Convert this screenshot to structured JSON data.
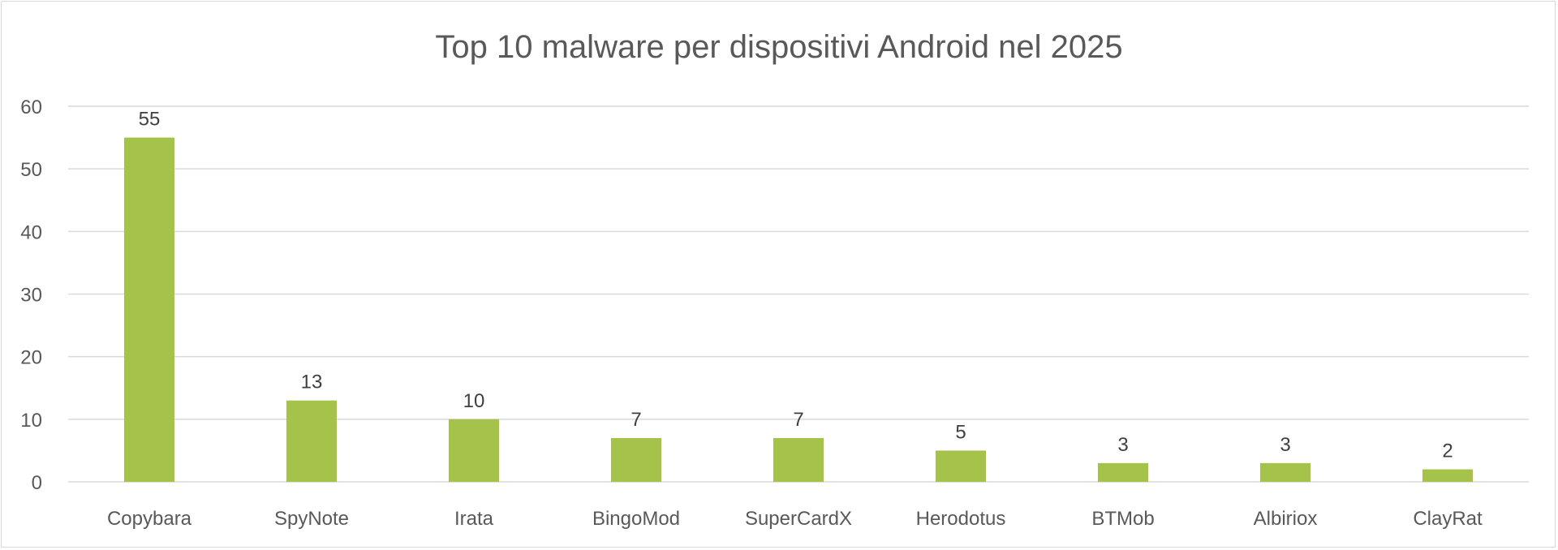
{
  "chart_data": {
    "type": "bar",
    "title": "Top 10 malware per dispositivi Android nel 2025",
    "xlabel": "",
    "ylabel": "",
    "categories": [
      "Copybara",
      "SpyNote",
      "Irata",
      "BingoMod",
      "SuperCardX",
      "Herodotus",
      "BTMob",
      "Albiriox",
      "ClayRat"
    ],
    "values": [
      55,
      13,
      10,
      7,
      7,
      5,
      3,
      3,
      2
    ],
    "ylim": [
      0,
      60
    ],
    "yticks": [
      0,
      10,
      20,
      30,
      40,
      50,
      60
    ],
    "grid": true,
    "legend": "none",
    "data_labels": true,
    "colors": {
      "bar": "#a5c34a",
      "grid": "#d9d9d9",
      "text": "#595959"
    }
  }
}
